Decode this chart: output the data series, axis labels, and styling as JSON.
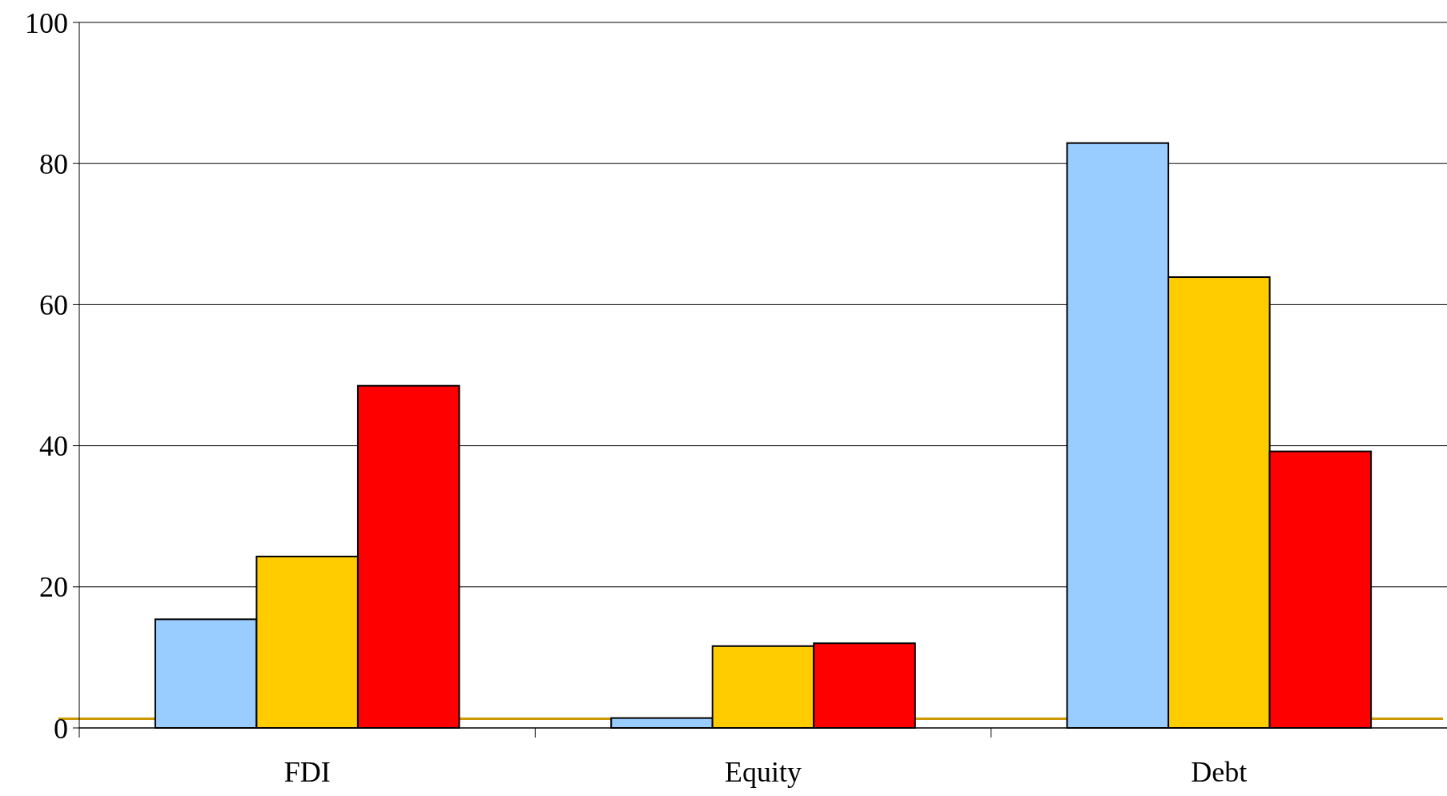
{
  "chart_data": {
    "type": "bar",
    "categories": [
      "FDI",
      "Equity",
      "Debt"
    ],
    "series": [
      {
        "color": "#99ccff",
        "values": [
          15.4,
          1.4,
          82.9
        ]
      },
      {
        "color": "#ffcc00",
        "values": [
          24.3,
          11.6,
          63.9
        ]
      },
      {
        "color": "#ff0000",
        "values": [
          48.5,
          12.0,
          39.2
        ]
      }
    ],
    "ylim": [
      0,
      100
    ],
    "yticks": [
      0,
      20,
      40,
      60,
      80,
      100
    ],
    "grid": "y",
    "ref_lines": [
      {
        "axis": "y",
        "value": 1.3,
        "color": "#cc9900"
      }
    ]
  }
}
